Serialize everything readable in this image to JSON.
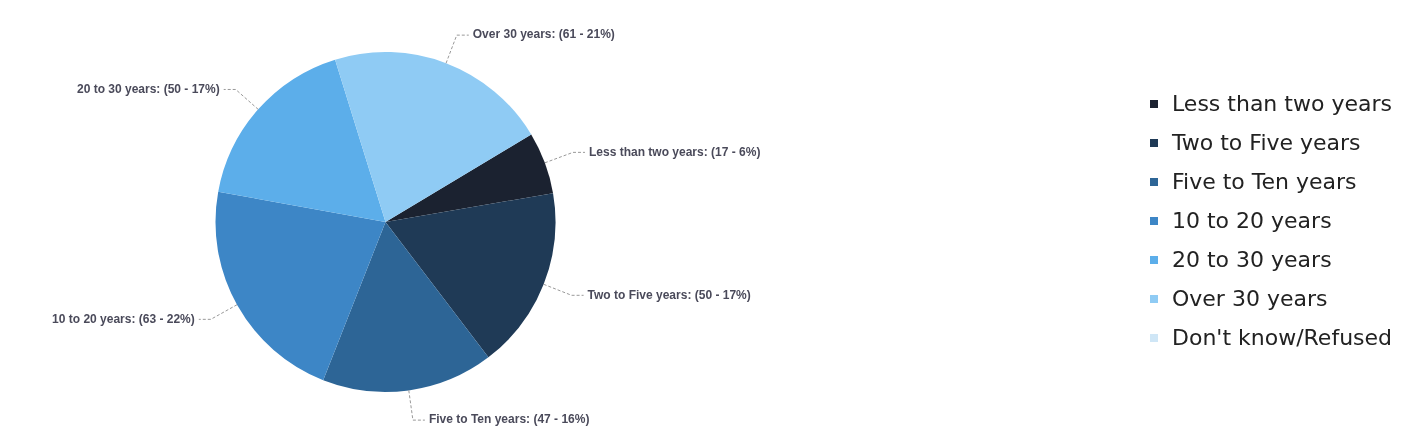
{
  "chart_data": {
    "type": "pie",
    "categories": [
      "Less than two years",
      "Two to Five years",
      "Five to Ten years",
      "10 to 20 years",
      "20 to 30 years",
      "Over 30 years",
      "Don't know/Refused"
    ],
    "values": [
      17,
      50,
      47,
      63,
      50,
      61,
      0
    ],
    "colors": [
      "#1b2230",
      "#1f3a56",
      "#2d6596",
      "#3d86c6",
      "#5caeea",
      "#8fcbf4",
      "#cfe6f6"
    ],
    "value_labels": [
      "Less than two years: (17 - 6%)",
      "Two to Five years: (50 - 17%)",
      "Five to Ten years: (47 - 16%)",
      "10 to 20 years: (63 - 22%)",
      "20 to 30 years: (50 - 17%)",
      "Over 30 years: (61 - 21%)",
      null
    ],
    "legend": "right"
  }
}
